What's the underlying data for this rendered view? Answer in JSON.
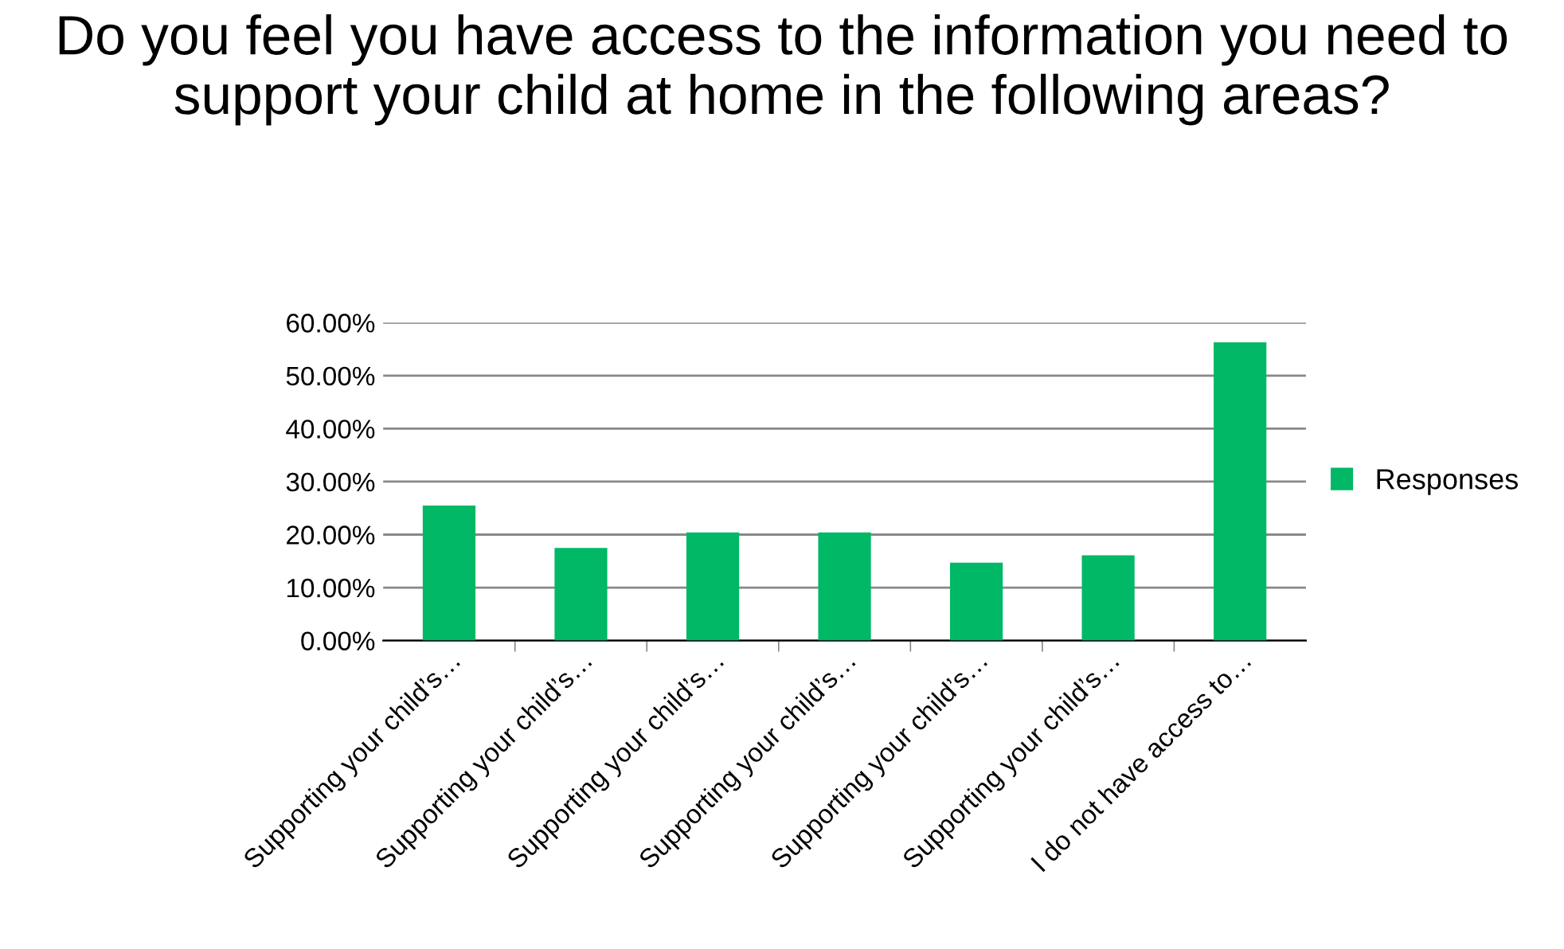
{
  "chart_data": {
    "type": "bar",
    "title": "Do you feel you have access to the information you need to support your child at home in the following areas?",
    "categories": [
      "Supporting your child’s…",
      "Supporting your child’s…",
      "Supporting your child’s…",
      "Supporting your child’s…",
      "Supporting your child’s…",
      "Supporting your child’s…",
      "I do not have access to…"
    ],
    "series": [
      {
        "name": "Responses",
        "color": "#00b865",
        "values": [
          25.5,
          17.5,
          20.4,
          20.4,
          14.7,
          16.1,
          56.3
        ]
      }
    ],
    "ylim": [
      0,
      60
    ],
    "yticks": [
      {
        "value": 0,
        "label": "0.00%"
      },
      {
        "value": 10,
        "label": "10.00%"
      },
      {
        "value": 20,
        "label": "20.00%"
      },
      {
        "value": 30,
        "label": "30.00%"
      },
      {
        "value": 40,
        "label": "40.00%"
      },
      {
        "value": 50,
        "label": "50.00%"
      },
      {
        "value": 60,
        "label": "60.00%"
      }
    ],
    "grid": "y",
    "legend": "right"
  }
}
